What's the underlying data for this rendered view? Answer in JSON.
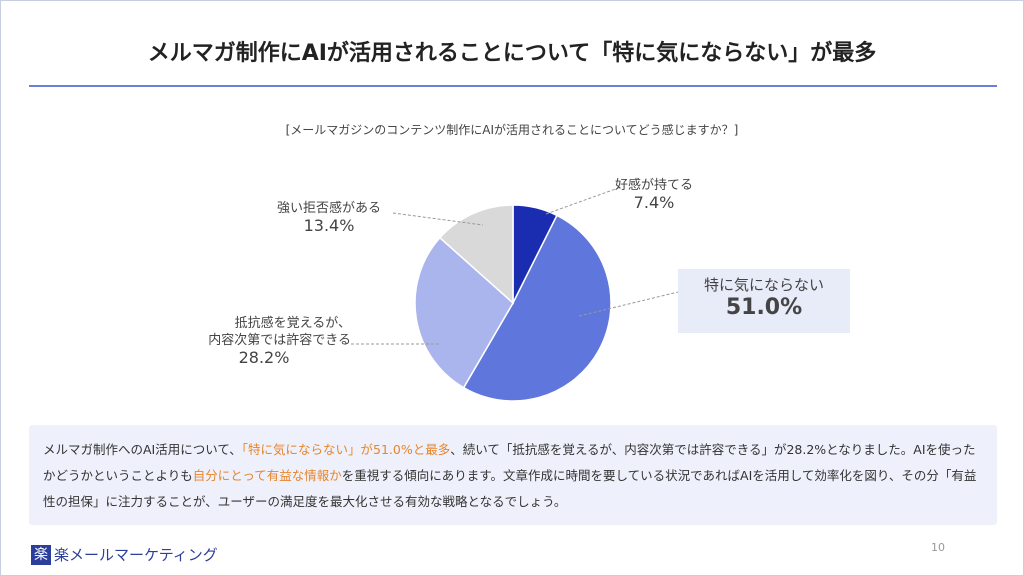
{
  "header": {
    "title": "メルマガ制作にAIが活用されることについて「特に気にならない」が最多"
  },
  "chart_data": {
    "type": "pie",
    "subtitle": "[メールマガジンのコンテンツ制作にAIが活用されることについてどう感じますか？]",
    "categories": [
      "好感が持てる",
      "特に気にならない",
      "抵抗感を覚えるが、\n内容次第では許容できる",
      "強い拒否感がある"
    ],
    "values": [
      7.4,
      51.0,
      28.2,
      13.4
    ],
    "value_labels": [
      "7.4%",
      "51.0%",
      "28.2%",
      "13.4%"
    ],
    "colors": [
      "#1a2db0",
      "#5f76dc",
      "#aab5ee",
      "#d9d9d9"
    ]
  },
  "summary": {
    "segments": [
      {
        "text": "メルマガ制作へのAI活用について、",
        "emphasis": false
      },
      {
        "text": "「特に気にならない」が51.0%と最多",
        "emphasis": true
      },
      {
        "text": "、続いて「抵抗感を覚えるが、内容次第では許容できる」が28.2%となりました。AIを使ったかどうかということよりも",
        "emphasis": false
      },
      {
        "text": "自分にとって有益な情報か",
        "emphasis": true
      },
      {
        "text": "を重視する傾向にあります。文章作成に時間を要している状況であればAIを活用して効率化を図り、その分「有益性の担保」に注力することが、ユーザーの満足度を最大化させる有効な戦略となるでしょう。",
        "emphasis": false
      }
    ]
  },
  "footer": {
    "logo_icon": "楽",
    "logo_text": "楽メールマーケティング",
    "page_number": "10"
  }
}
